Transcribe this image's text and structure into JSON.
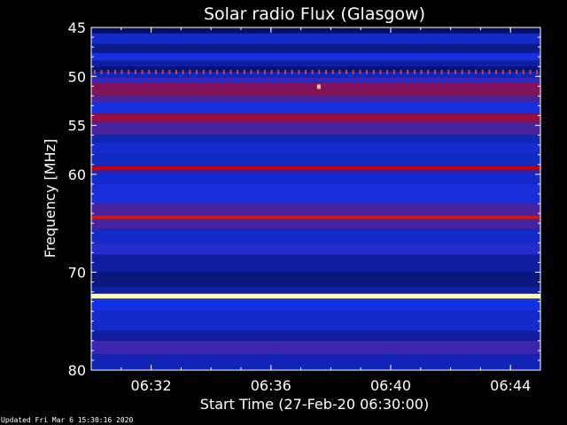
{
  "chart_data": {
    "type": "heatmap",
    "title": "Solar radio Flux (Glasgow)",
    "xlabel": "Start Time (27-Feb-20 06:30:00)",
    "ylabel": "Frequency [MHz]",
    "x_range_minutes": [
      0,
      15
    ],
    "x_ticks": [
      {
        "minute": 2,
        "label": "06:32"
      },
      {
        "minute": 6,
        "label": "06:36"
      },
      {
        "minute": 10,
        "label": "06:40"
      },
      {
        "minute": 14,
        "label": "06:44"
      }
    ],
    "y_range_mhz": [
      45,
      80
    ],
    "y_ticks": [
      {
        "mhz": 45,
        "label": "45"
      },
      {
        "mhz": 50,
        "label": "50"
      },
      {
        "mhz": 55,
        "label": "55"
      },
      {
        "mhz": 60,
        "label": "60"
      },
      {
        "mhz": 70,
        "label": "70"
      },
      {
        "mhz": 80,
        "label": "80"
      }
    ],
    "colormap": {
      "background": "#000000",
      "low": "#000020",
      "mid": "#1530e0",
      "high": "#cc0000",
      "peak": "#ffffc0"
    },
    "bands": [
      {
        "from": 45.0,
        "to": 45.6,
        "level": 0.15
      },
      {
        "from": 45.6,
        "to": 46.7,
        "level": 0.4
      },
      {
        "from": 46.7,
        "to": 47.6,
        "level": 0.25
      },
      {
        "from": 47.6,
        "to": 48.4,
        "level": 0.45
      },
      {
        "from": 48.4,
        "to": 49.0,
        "level": 0.3
      },
      {
        "from": 49.0,
        "to": 49.5,
        "level": 0.2
      },
      {
        "from": 49.5,
        "to": 50.1,
        "level": 0.35
      },
      {
        "from": 50.1,
        "to": 50.6,
        "level": 0.5
      },
      {
        "from": 50.6,
        "to": 52.0,
        "level": 0.66
      },
      {
        "from": 52.0,
        "to": 52.6,
        "level": 0.55
      },
      {
        "from": 52.6,
        "to": 53.8,
        "level": 0.45
      },
      {
        "from": 53.8,
        "to": 54.6,
        "level": 0.7
      },
      {
        "from": 54.6,
        "to": 56.0,
        "level": 0.55
      },
      {
        "from": 56.0,
        "to": 56.8,
        "level": 0.35
      },
      {
        "from": 56.8,
        "to": 58.0,
        "level": 0.42
      },
      {
        "from": 58.0,
        "to": 59.2,
        "level": 0.38
      },
      {
        "from": 59.2,
        "to": 59.6,
        "level": 0.8
      },
      {
        "from": 59.6,
        "to": 61.0,
        "level": 0.4
      },
      {
        "from": 61.0,
        "to": 63.0,
        "level": 0.46
      },
      {
        "from": 63.0,
        "to": 64.2,
        "level": 0.55
      },
      {
        "from": 64.2,
        "to": 64.6,
        "level": 0.82
      },
      {
        "from": 64.6,
        "to": 65.6,
        "level": 0.55
      },
      {
        "from": 65.6,
        "to": 67.0,
        "level": 0.4
      },
      {
        "from": 67.0,
        "to": 68.2,
        "level": 0.48
      },
      {
        "from": 68.2,
        "to": 70.0,
        "level": 0.3
      },
      {
        "from": 70.0,
        "to": 71.5,
        "level": 0.22
      },
      {
        "from": 71.5,
        "to": 72.2,
        "level": 0.3
      },
      {
        "from": 72.2,
        "to": 72.7,
        "level": 1.0
      },
      {
        "from": 72.7,
        "to": 74.0,
        "level": 0.45
      },
      {
        "from": 74.0,
        "to": 76.0,
        "level": 0.4
      },
      {
        "from": 76.0,
        "to": 77.0,
        "level": 0.3
      },
      {
        "from": 77.0,
        "to": 78.4,
        "level": 0.52
      },
      {
        "from": 78.4,
        "to": 80.0,
        "level": 0.35
      }
    ],
    "periodic_markers": {
      "mhz": 49.6,
      "level": 0.85,
      "count": 66
    },
    "bright_spot": {
      "minute": 7.6,
      "mhz": 51.1,
      "level": 0.95
    }
  },
  "footer": {
    "updated": "Updated Fri Mar  6 15:30:16 2020"
  }
}
